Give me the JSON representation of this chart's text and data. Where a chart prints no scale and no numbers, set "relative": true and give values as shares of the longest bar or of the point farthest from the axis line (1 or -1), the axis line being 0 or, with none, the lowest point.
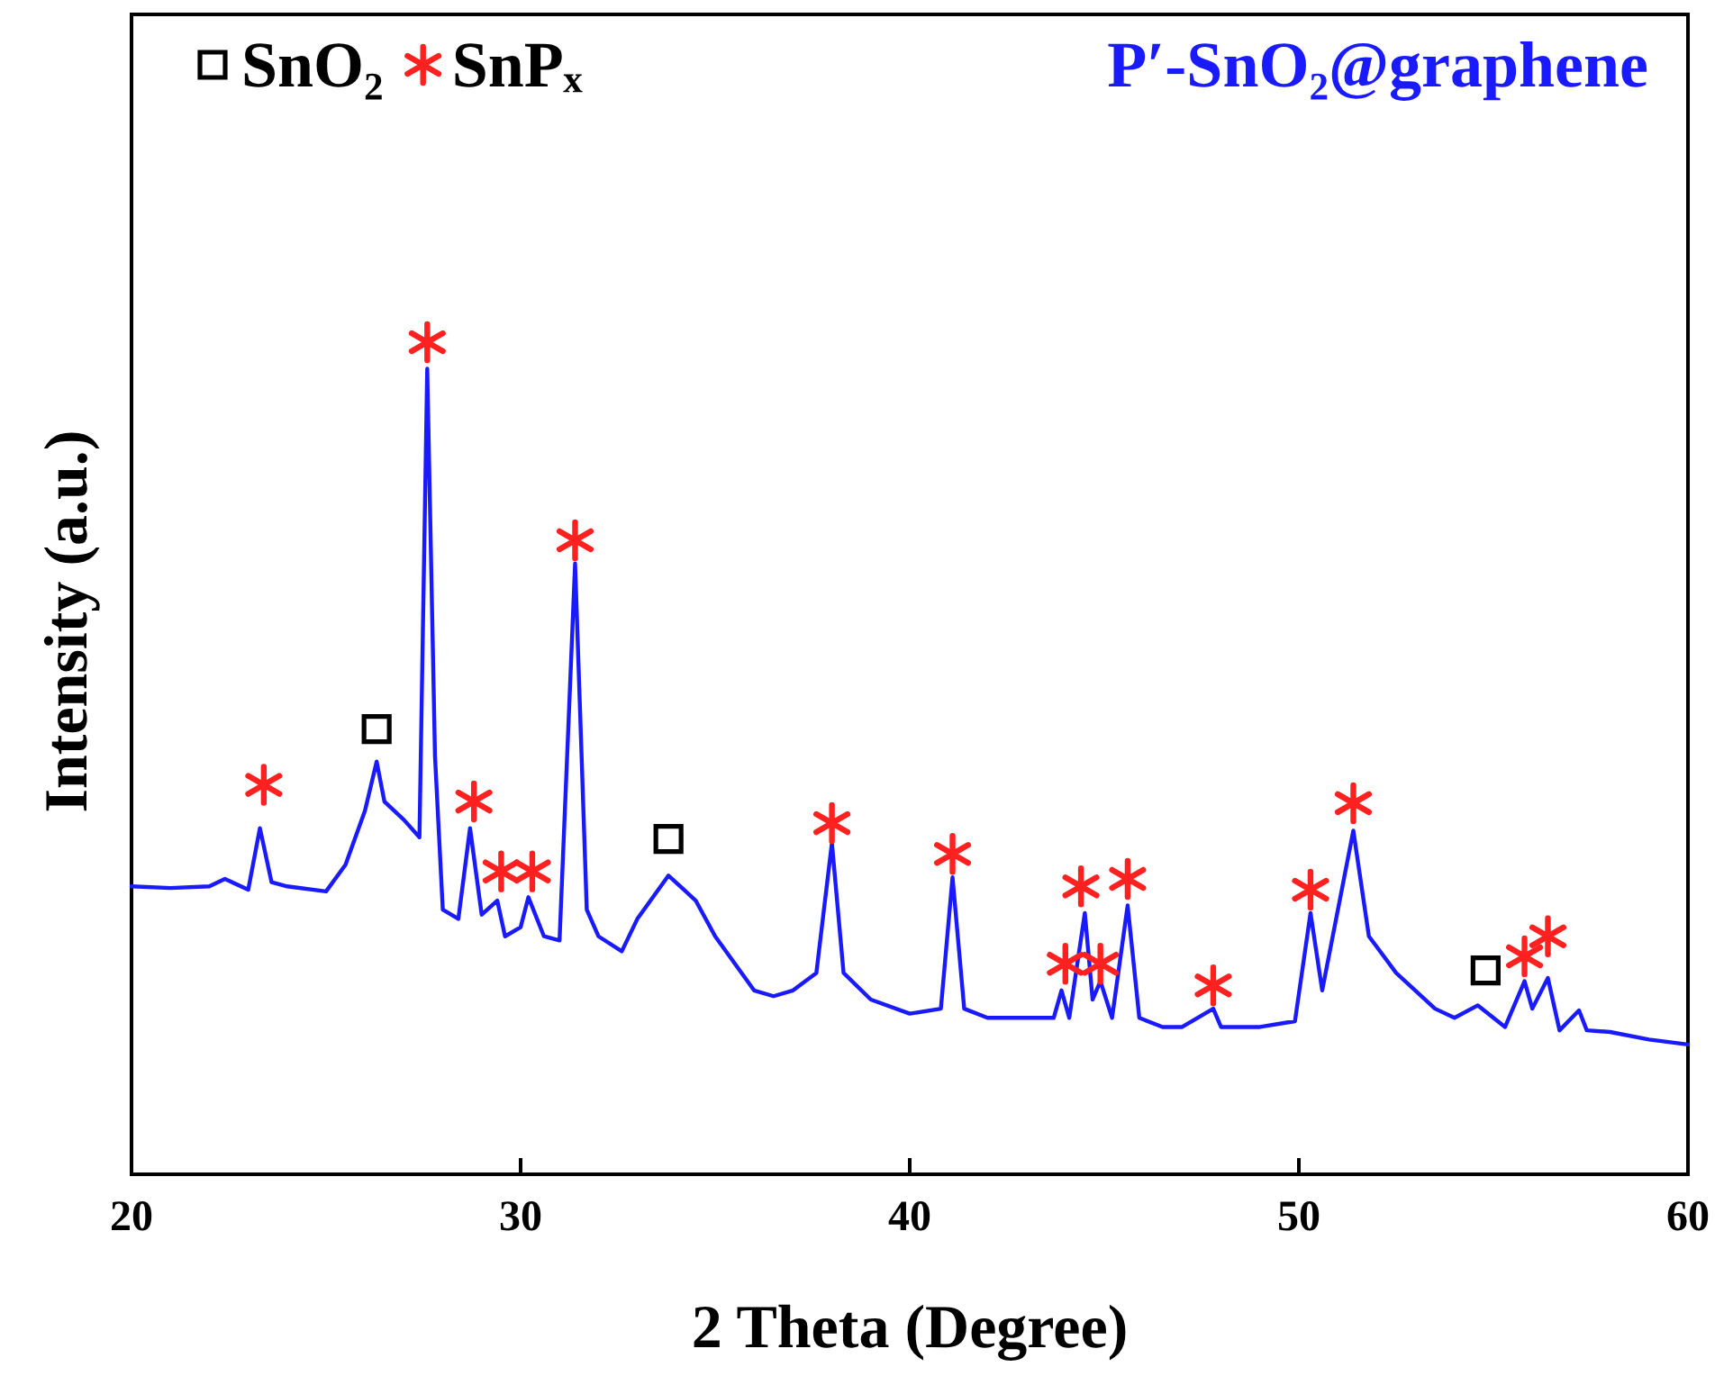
{
  "chart_data": {
    "type": "line",
    "xlabel": "2 Theta (Degree)",
    "ylabel": "Intensity (a.u.)",
    "relative": true,
    "xlim": [
      20,
      60
    ],
    "xticks": [
      20,
      30,
      40,
      50,
      60
    ],
    "legend": "top",
    "grid": false,
    "series": [
      {
        "name": "P′-SnO₂@graphene",
        "color": "#1a1aff",
        "marker": "none",
        "x": [
          20,
          21,
          22,
          22.4,
          23,
          23.3,
          23.6,
          24,
          25,
          25.5,
          26,
          26.3,
          26.5,
          27,
          27.4,
          27.6,
          27.8,
          28,
          28.4,
          28.7,
          29,
          29.4,
          29.6,
          30,
          30.2,
          30.6,
          31,
          31.4,
          31.7,
          32,
          32.6,
          33,
          33.8,
          34.5,
          35,
          36,
          36.5,
          37,
          37.6,
          38,
          38.3,
          39,
          40,
          40.8,
          41.1,
          41.4,
          42,
          43,
          43.7,
          43.9,
          44.1,
          44.5,
          44.7,
          44.9,
          45.2,
          45.6,
          45.9,
          46.5,
          47,
          47.8,
          48,
          49,
          49.9,
          50.3,
          50.6,
          51.4,
          51.8,
          52.5,
          53.5,
          54,
          54.6,
          55.3,
          55.8,
          56,
          56.4,
          56.7,
          57.2,
          57.4,
          58,
          59,
          60
        ],
        "values": [
          0.346,
          0.344,
          0.346,
          0.355,
          0.342,
          0.416,
          0.351,
          0.346,
          0.34,
          0.372,
          0.437,
          0.496,
          0.448,
          0.426,
          0.405,
          0.968,
          0.502,
          0.318,
          0.307,
          0.416,
          0.312,
          0.329,
          0.286,
          0.297,
          0.333,
          0.286,
          0.281,
          0.734,
          0.318,
          0.286,
          0.268,
          0.307,
          0.359,
          0.329,
          0.286,
          0.221,
          0.214,
          0.221,
          0.242,
          0.398,
          0.242,
          0.21,
          0.193,
          0.199,
          0.357,
          0.199,
          0.188,
          0.188,
          0.188,
          0.221,
          0.188,
          0.314,
          0.21,
          0.232,
          0.188,
          0.323,
          0.188,
          0.177,
          0.177,
          0.199,
          0.177,
          0.177,
          0.184,
          0.314,
          0.221,
          0.413,
          0.286,
          0.242,
          0.199,
          0.188,
          0.203,
          0.177,
          0.232,
          0.199,
          0.236,
          0.173,
          0.197,
          0.173,
          0.171,
          0.162,
          0.156
        ]
      },
      {
        "name": "SnO₂",
        "type": "scatter",
        "color": "#000000",
        "marker": "square",
        "x": [
          26.3,
          33.8,
          54.8
        ],
        "values": [
          0.535,
          0.403,
          0.245
        ]
      },
      {
        "name": "SnPₓ",
        "type": "scatter",
        "color": "#ff2020",
        "marker": "cross",
        "x": [
          23.4,
          27.6,
          28.8,
          29.5,
          30.3,
          31.4,
          38.0,
          41.1,
          44.0,
          44.4,
          44.9,
          45.6,
          47.8,
          50.3,
          51.4,
          55.8,
          56.4
        ],
        "values": [
          0.468,
          1,
          0.448,
          0.364,
          0.364,
          0.762,
          0.422,
          0.385,
          0.253,
          0.346,
          0.253,
          0.355,
          0.227,
          0.342,
          0.446,
          0.262,
          0.286
        ]
      }
    ]
  }
}
